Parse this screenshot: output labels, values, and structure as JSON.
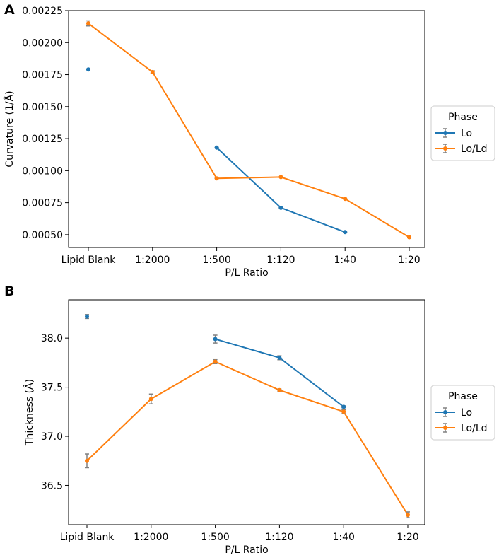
{
  "chart_data": [
    {
      "panel": "A",
      "type": "line",
      "categories": [
        "Lipid Blank",
        "1:2000",
        "1:500",
        "1:120",
        "1:40",
        "1:20"
      ],
      "xlabel": "P/L Ratio",
      "ylabel": "Curvature (1/Å)",
      "ylim": [
        0.0004,
        0.00225
      ],
      "yticks": [
        0.0005,
        0.00075,
        0.001,
        0.00125,
        0.0015,
        0.00175,
        0.002,
        0.00225
      ],
      "ytick_labels": [
        "0.00050",
        "0.00075",
        "0.00100",
        "0.00125",
        "0.00150",
        "0.00175",
        "0.00200",
        "0.00225"
      ],
      "legend_title": "Phase",
      "series": [
        {
          "name": "Lo",
          "color": "#1f77b4",
          "values": [
            0.00179,
            null,
            0.00118,
            0.00071,
            0.00052,
            null
          ],
          "errors": [
            0,
            0,
            0,
            0,
            0,
            0
          ]
        },
        {
          "name": "Lo/Ld",
          "color": "#ff7f0e",
          "values": [
            0.00215,
            0.00177,
            0.00094,
            0.00095,
            0.00078,
            0.00048
          ],
          "errors": [
            2e-05,
            1e-05,
            0,
            0,
            0,
            0
          ]
        }
      ]
    },
    {
      "panel": "B",
      "type": "line",
      "categories": [
        "Lipid Blank",
        "1:2000",
        "1:500",
        "1:120",
        "1:40",
        "1:20"
      ],
      "xlabel": "P/L Ratio",
      "ylabel": "Thickness (Å)",
      "ylim": [
        36.1,
        38.39
      ],
      "yticks": [
        36.5,
        37.0,
        37.5,
        38.0
      ],
      "ytick_labels": [
        "36.5",
        "37.0",
        "37.5",
        "38.0"
      ],
      "legend_title": "Phase",
      "series": [
        {
          "name": "Lo",
          "color": "#1f77b4",
          "values": [
            38.22,
            null,
            37.99,
            37.8,
            37.3,
            null
          ],
          "errors": [
            0.02,
            0,
            0.04,
            0.02,
            0.01,
            0
          ]
        },
        {
          "name": "Lo/Ld",
          "color": "#ff7f0e",
          "values": [
            36.75,
            37.38,
            37.76,
            37.47,
            37.25,
            36.2
          ],
          "errors": [
            0.07,
            0.05,
            0.02,
            0.01,
            0.02,
            0.03
          ]
        }
      ]
    }
  ]
}
